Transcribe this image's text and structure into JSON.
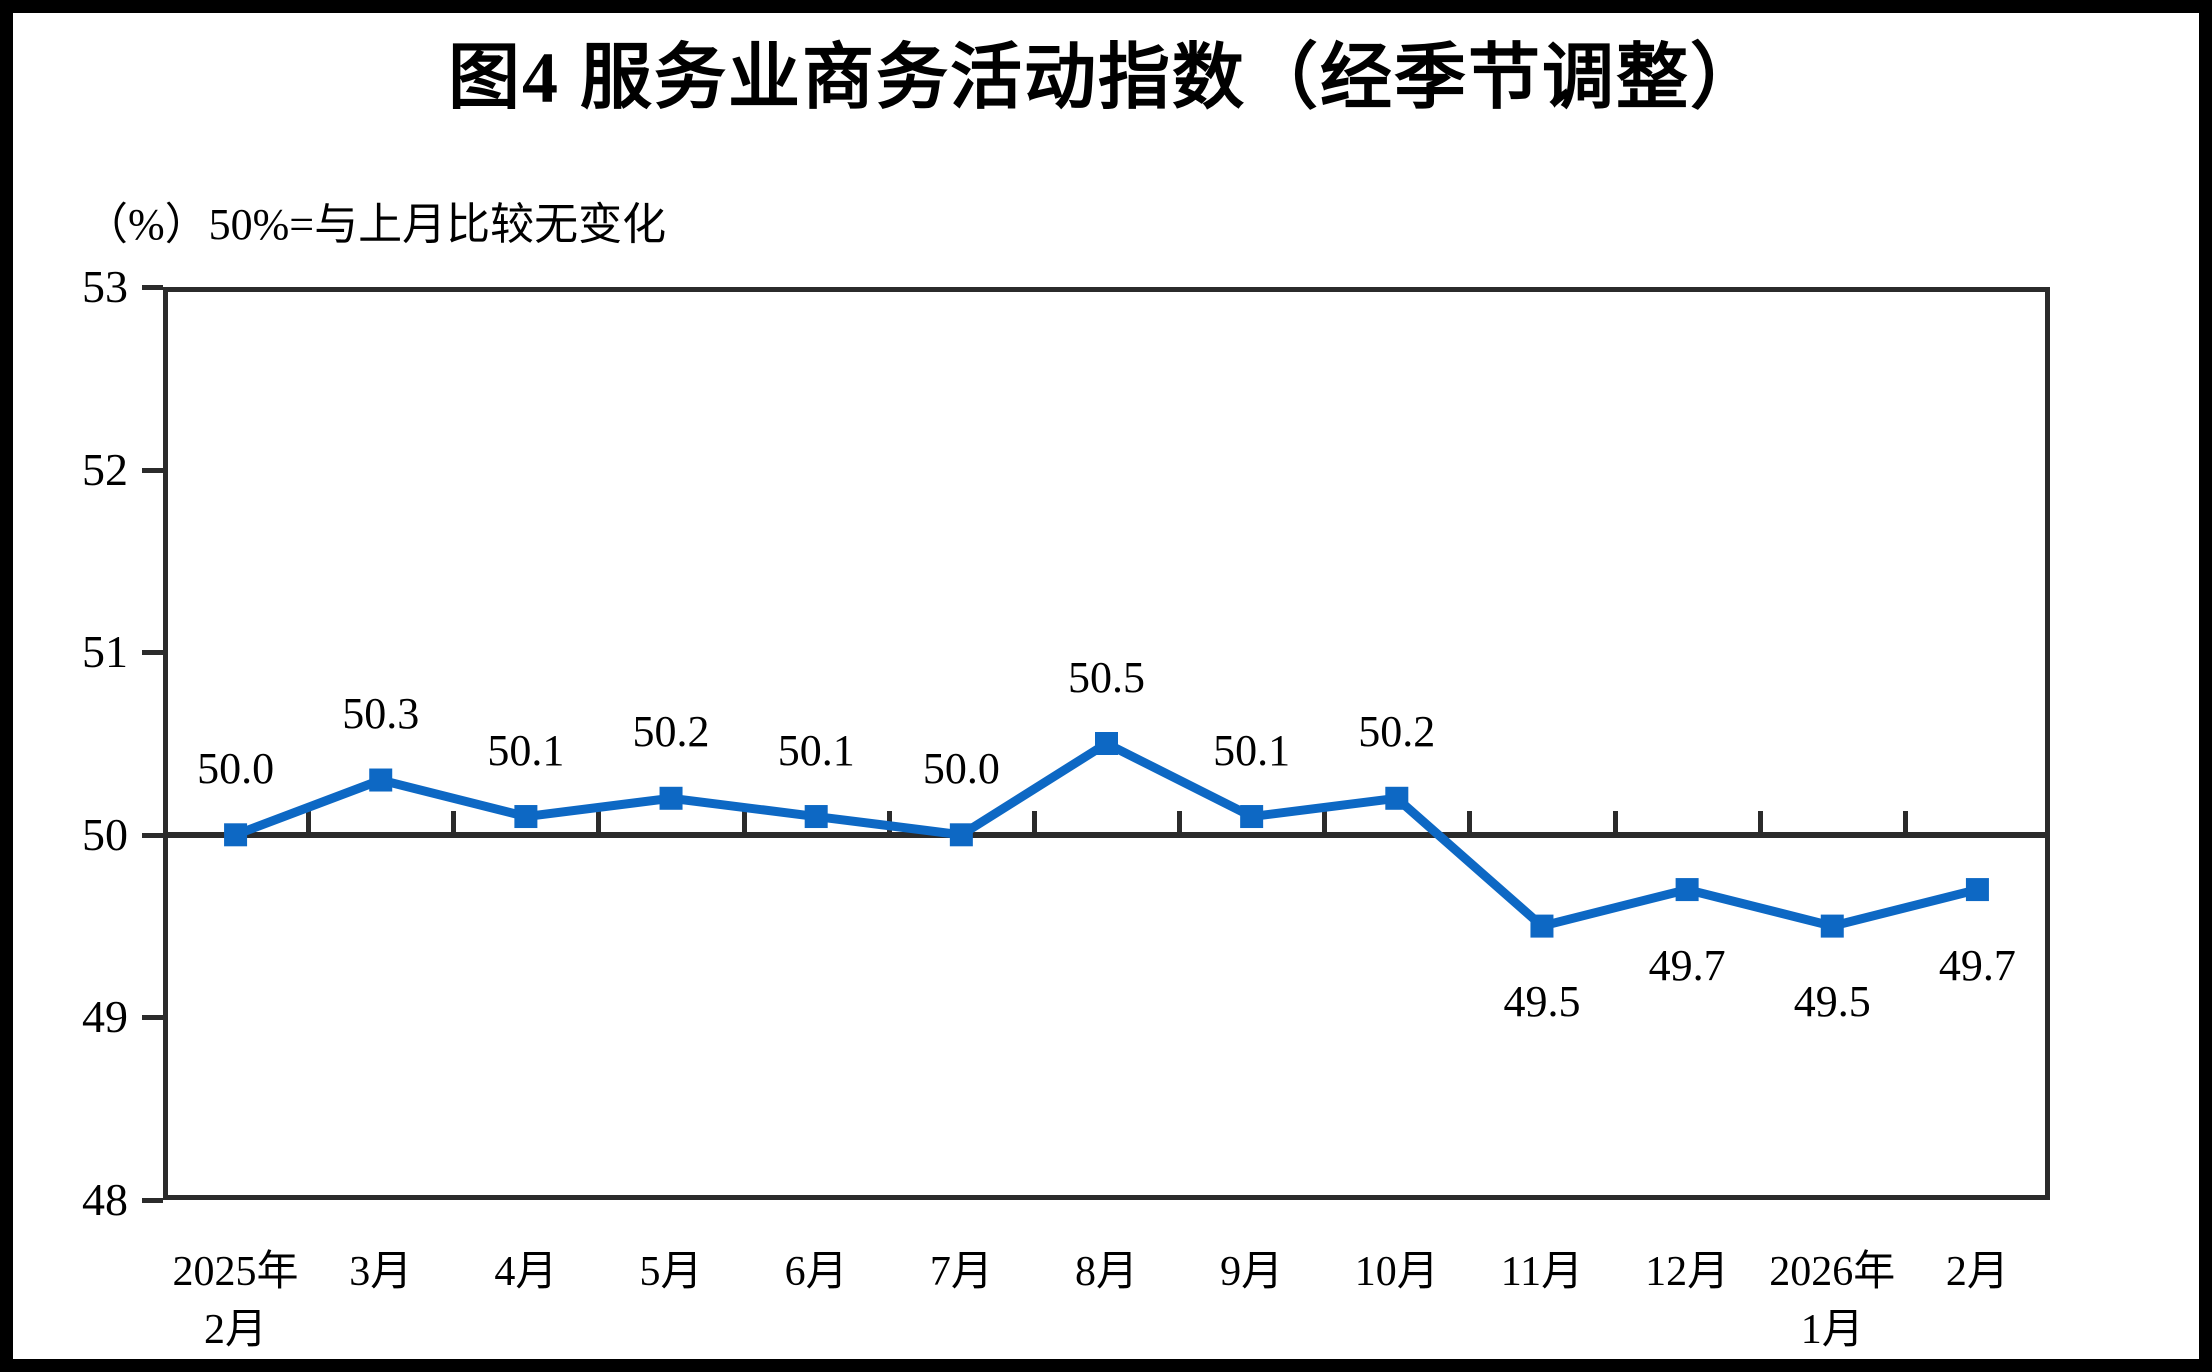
{
  "chart_data": {
    "type": "line",
    "title": "图4  服务业商务活动指数（经季节调整）",
    "unit_note": "（%）50%=与上月比较无变化",
    "categories": [
      [
        "2025年",
        "2月"
      ],
      [
        "3月"
      ],
      [
        "4月"
      ],
      [
        "5月"
      ],
      [
        "6月"
      ],
      [
        "7月"
      ],
      [
        "8月"
      ],
      [
        "9月"
      ],
      [
        "10月"
      ],
      [
        "11月"
      ],
      [
        "12月"
      ],
      [
        "2026年",
        "1月"
      ],
      [
        "2月"
      ]
    ],
    "values": [
      50.0,
      50.3,
      50.1,
      50.2,
      50.1,
      50.0,
      50.5,
      50.1,
      50.2,
      49.5,
      49.7,
      49.5,
      49.7
    ],
    "data_labels": [
      "50.0",
      "50.3",
      "50.1",
      "50.2",
      "50.1",
      "50.0",
      "50.5",
      "50.1",
      "50.2",
      "49.5",
      "49.7",
      "49.5",
      "49.7"
    ],
    "ylim": [
      48,
      53
    ],
    "yticks": [
      48,
      49,
      50,
      51,
      52,
      53
    ],
    "reference_line": 50,
    "grid": "off",
    "legend": "none",
    "colors": {
      "line": "#0d68c4",
      "marker": "#0d68c4",
      "axis": "#2b2b2b",
      "text": "#000000",
      "background": "#ffffff",
      "frame": "#000000"
    }
  }
}
